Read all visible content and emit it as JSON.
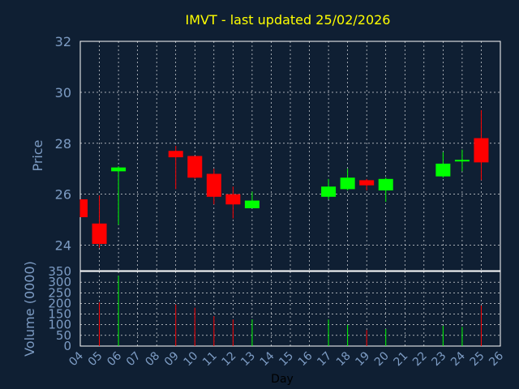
{
  "chart_data": {
    "type": "candlestick",
    "title": "IMVT - last updated 25/02/2026",
    "colors": {
      "background": "#0f1f33",
      "title": "#ffff00",
      "axis_text": "#7d9cc4",
      "grid": "#ffffff",
      "frame": "#ffffff",
      "up": "#00ff00",
      "down": "#ff0000",
      "xlabel": "#000000"
    },
    "price_panel": {
      "ylabel": "Price",
      "ylim": [
        23,
        32
      ],
      "yticks": [
        "24",
        "26",
        "28",
        "30",
        "32"
      ],
      "grid": true
    },
    "volume_panel": {
      "ylabel": "Volume (0000)",
      "ylim": [
        0,
        350
      ],
      "yticks": [
        "0",
        "50",
        "100",
        "150",
        "200",
        "250",
        "300",
        "350"
      ],
      "grid": true
    },
    "x_axis": {
      "xlabel": "Day",
      "xlim": [
        4,
        26
      ],
      "tick_labels": [
        "04",
        "05",
        "06",
        "07",
        "08",
        "09",
        "10",
        "11",
        "12",
        "13",
        "14",
        "15",
        "16",
        "17",
        "18",
        "19",
        "20",
        "21",
        "22",
        "23",
        "24",
        "25",
        "26"
      ]
    },
    "candles": [
      {
        "day": 4,
        "open": 25.8,
        "high": 25.8,
        "low": 25.1,
        "close": 25.1,
        "volume": 0
      },
      {
        "day": 5,
        "open": 24.85,
        "high": 25.95,
        "low": 23.9,
        "close": 24.05,
        "volume": 205
      },
      {
        "day": 6,
        "open": 26.9,
        "high": 27.1,
        "low": 24.8,
        "close": 27.05,
        "volume": 330
      },
      {
        "day": 9,
        "open": 27.7,
        "high": 27.9,
        "low": 26.2,
        "close": 27.45,
        "volume": 195
      },
      {
        "day": 10,
        "open": 27.5,
        "high": 27.5,
        "low": 26.6,
        "close": 26.65,
        "volume": 180
      },
      {
        "day": 11,
        "open": 26.8,
        "high": 27.0,
        "low": 25.6,
        "close": 25.9,
        "volume": 140
      },
      {
        "day": 12,
        "open": 26.0,
        "high": 26.3,
        "low": 25.05,
        "close": 25.6,
        "volume": 125
      },
      {
        "day": 13,
        "open": 25.45,
        "high": 26.1,
        "low": 25.45,
        "close": 25.75,
        "volume": 125
      },
      {
        "day": 17,
        "open": 25.9,
        "high": 26.6,
        "low": 25.8,
        "close": 26.3,
        "volume": 125
      },
      {
        "day": 18,
        "open": 26.2,
        "high": 27.0,
        "low": 26.15,
        "close": 26.65,
        "volume": 100
      },
      {
        "day": 19,
        "open": 26.55,
        "high": 26.6,
        "low": 26.15,
        "close": 26.35,
        "volume": 75
      },
      {
        "day": 20,
        "open": 26.15,
        "high": 26.65,
        "low": 25.7,
        "close": 26.6,
        "volume": 80
      },
      {
        "day": 23,
        "open": 26.7,
        "high": 27.65,
        "low": 26.65,
        "close": 27.2,
        "volume": 95
      },
      {
        "day": 24,
        "open": 27.3,
        "high": 27.75,
        "low": 26.9,
        "close": 27.35,
        "volume": 90
      },
      {
        "day": 25,
        "open": 28.2,
        "high": 29.3,
        "low": 26.55,
        "close": 27.25,
        "volume": 190
      }
    ]
  }
}
